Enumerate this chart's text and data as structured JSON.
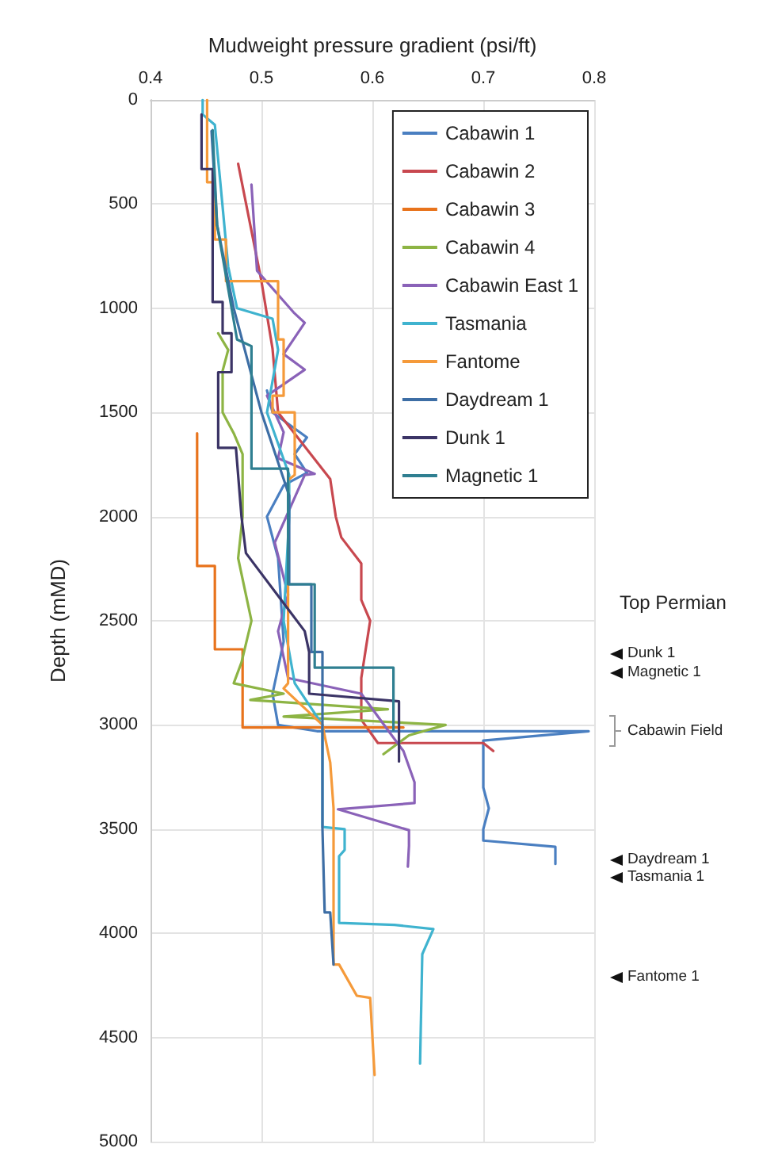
{
  "chart_data": {
    "type": "line",
    "xlabel": "Mudweight pressure gradient (psi/ft)",
    "ylabel": "Depth (mMD)",
    "xlim": [
      0.4,
      0.8
    ],
    "xticks": [
      0.4,
      0.5,
      0.6,
      0.7,
      0.8
    ],
    "ylim": [
      5000,
      0
    ],
    "yticks": [
      0,
      500,
      1000,
      1500,
      2000,
      2500,
      3000,
      3500,
      4000,
      4500,
      5000
    ],
    "grid": true,
    "legend": "top right",
    "series": [
      {
        "name": "Cabawin 1",
        "color": "#4a7fc1",
        "x": [
          0.505,
          0.51,
          0.541,
          0.53,
          0.541,
          0.52,
          0.505,
          0.515,
          0.52,
          0.51,
          0.515,
          0.55,
          0.795,
          0.7,
          0.7,
          0.705,
          0.7,
          0.7,
          0.765,
          0.765
        ],
        "values": [
          1395,
          1500,
          1620,
          1700,
          1790,
          1850,
          2000,
          2200,
          2600,
          2850,
          3000,
          3030,
          3030,
          3075,
          3300,
          3400,
          3500,
          3555,
          3585,
          3667
        ]
      },
      {
        "name": "Cabawin 2",
        "color": "#c8484f",
        "x": [
          0.479,
          0.5,
          0.51,
          0.515,
          0.562,
          0.567,
          0.572,
          0.59,
          0.59,
          0.598,
          0.59,
          0.59,
          0.605,
          0.7,
          0.709
        ],
        "values": [
          307,
          870,
          1195,
          1500,
          1820,
          2000,
          2100,
          2225,
          2400,
          2500,
          2775,
          2975,
          3087,
          3087,
          3125
        ]
      },
      {
        "name": "Cabawin 3",
        "color": "#e8731c",
        "x": [
          0.442,
          0.442,
          0.458,
          0.458,
          0.483,
          0.483,
          0.628
        ],
        "values": [
          1600,
          2237,
          2237,
          2637,
          2637,
          3012,
          3012
        ]
      },
      {
        "name": "Cabawin 4",
        "color": "#8db444",
        "x": [
          0.461,
          0.47,
          0.465,
          0.465,
          0.475,
          0.483,
          0.483,
          0.479,
          0.491,
          0.482,
          0.475,
          0.52,
          0.49,
          0.614,
          0.52,
          0.666,
          0.633,
          0.61
        ],
        "values": [
          1120,
          1200,
          1300,
          1500,
          1600,
          1700,
          2000,
          2200,
          2500,
          2700,
          2800,
          2850,
          2880,
          2925,
          2960,
          3000,
          3050,
          3140
        ]
      },
      {
        "name": "Cabawin East 1",
        "color": "#8a62b8",
        "x": [
          0.491,
          0.496,
          0.529,
          0.539,
          0.52,
          0.539,
          0.505,
          0.52,
          0.515,
          0.548,
          0.539,
          0.512,
          0.524,
          0.515,
          0.524,
          0.59,
          0.614,
          0.628,
          0.638,
          0.638,
          0.569,
          0.633,
          0.633,
          0.632
        ],
        "values": [
          407,
          820,
          1020,
          1070,
          1220,
          1295,
          1420,
          1595,
          1720,
          1795,
          1800,
          2125,
          2375,
          2550,
          2775,
          2850,
          3025,
          3125,
          3275,
          3375,
          3405,
          3505,
          3580,
          3680
        ]
      },
      {
        "name": "Tasmania",
        "color": "#3fb3cf",
        "x": [
          0.447,
          0.447,
          0.458,
          0.463,
          0.47,
          0.478,
          0.51,
          0.515,
          0.505,
          0.525,
          0.525,
          0.52,
          0.53,
          0.555,
          0.555,
          0.575,
          0.575,
          0.57,
          0.57,
          0.62,
          0.655,
          0.645,
          0.643
        ],
        "values": [
          0,
          70,
          120,
          400,
          800,
          1000,
          1050,
          1200,
          1500,
          1800,
          2000,
          2500,
          2800,
          3000,
          3490,
          3500,
          3600,
          3630,
          3950,
          3960,
          3980,
          4100,
          4625
        ]
      },
      {
        "name": "Fantome",
        "color": "#f59a3a",
        "x": [
          0.451,
          0.451,
          0.458,
          0.458,
          0.468,
          0.468,
          0.515,
          0.515,
          0.52,
          0.52,
          0.51,
          0.51,
          0.53,
          0.53,
          0.524,
          0.524,
          0.52,
          0.555,
          0.562,
          0.565,
          0.565,
          0.57,
          0.586,
          0.598,
          0.602
        ],
        "values": [
          0,
          395,
          395,
          670,
          670,
          870,
          870,
          1150,
          1150,
          1420,
          1420,
          1500,
          1500,
          1800,
          1825,
          2800,
          2825,
          3000,
          3180,
          3400,
          4150,
          4150,
          4300,
          4310,
          4680
        ]
      },
      {
        "name": "Daydream 1",
        "color": "#3d6ea5",
        "x": [
          0.455,
          0.46,
          0.475,
          0.5,
          0.525,
          0.525,
          0.545,
          0.545,
          0.555,
          0.555,
          0.557,
          0.562,
          0.565
        ],
        "values": [
          150,
          600,
          1000,
          1500,
          1900,
          2325,
          2325,
          2650,
          2650,
          3500,
          3900,
          3900,
          4150
        ]
      },
      {
        "name": "Dunk 1",
        "color": "#3b3466",
        "x": [
          0.446,
          0.446,
          0.456,
          0.456,
          0.465,
          0.465,
          0.473,
          0.473,
          0.461,
          0.461,
          0.477,
          0.482,
          0.486,
          0.539,
          0.543,
          0.543,
          0.624,
          0.624
        ],
        "values": [
          70,
          332,
          332,
          970,
          970,
          1120,
          1120,
          1307,
          1307,
          1670,
          1670,
          2000,
          2175,
          2550,
          2650,
          2850,
          2887,
          3175
        ]
      },
      {
        "name": "Magnetic 1",
        "color": "#2f7f91",
        "x": [
          0.456,
          0.46,
          0.478,
          0.491,
          0.491,
          0.524,
          0.524,
          0.548,
          0.548,
          0.619,
          0.619
        ],
        "values": [
          145,
          600,
          1150,
          1182,
          1770,
          1770,
          2325,
          2325,
          2725,
          2725,
          3025
        ]
      }
    ],
    "annotations": [
      "Top Permian",
      "Dunk 1",
      "Magnetic 1",
      "Cabawin Field",
      "Daydream 1",
      "Tasmania 1",
      "Fantome 1"
    ]
  }
}
